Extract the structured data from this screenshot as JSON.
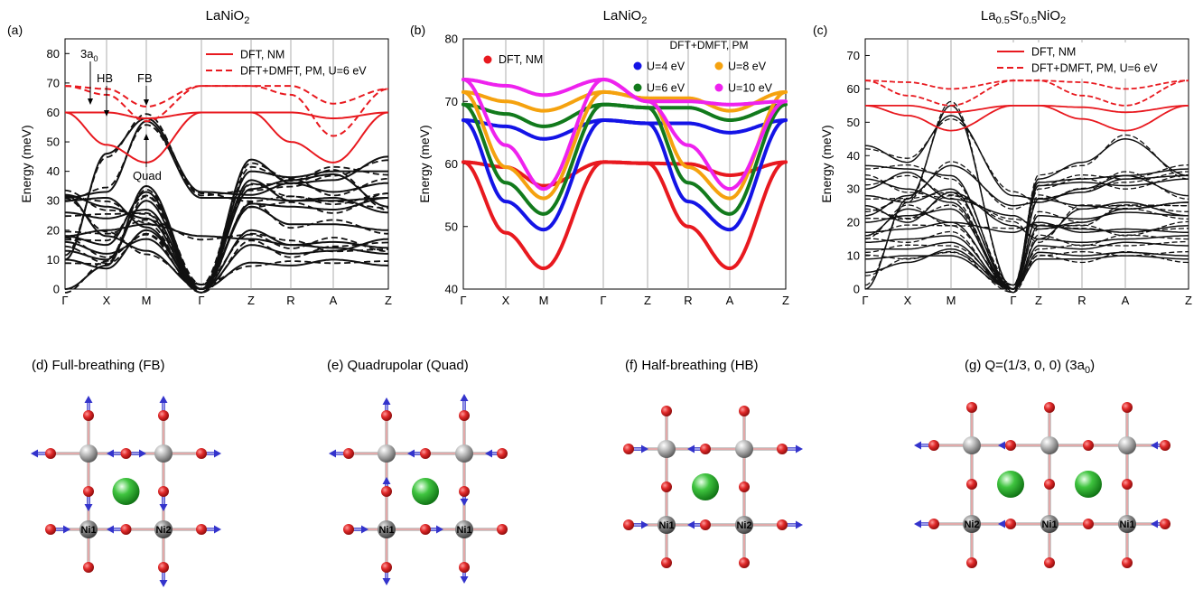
{
  "colors": {
    "nm": "#e8191f",
    "u4": "#1414e6",
    "u6": "#127a1c",
    "u8": "#f5a20f",
    "u10": "#ee22ee",
    "black": "#111111",
    "o_atom": "#d7252f",
    "ni_atom": "#9a9a9a",
    "la_atom": "#2db433",
    "arrow": "#3333cc"
  },
  "chart_data": [
    {
      "panel": "(a)",
      "type": "line",
      "title": "LaNiO2",
      "ylabel": "Energy (meV)",
      "ylim": [
        0,
        85
      ],
      "yticks": [
        0,
        10,
        20,
        30,
        40,
        50,
        60,
        70,
        80
      ],
      "kpoints": [
        "Γ",
        "X",
        "M",
        "Γ",
        "Z",
        "R",
        "A",
        "Z"
      ],
      "legend": [
        {
          "label": "DFT, NM",
          "style": "solid"
        },
        {
          "label": "DFT+DMFT, PM, U=6 eV",
          "style": "dashed"
        }
      ],
      "annotations": [
        "3a0",
        "HB",
        "FB",
        "Quad"
      ],
      "series": [
        {
          "name": "DFT, NM",
          "style": "solid",
          "color": "nm",
          "values": [
            [
              60,
              60,
              58,
              60,
              60,
              60,
              58,
              60
            ],
            [
              60,
              49,
              43,
              60,
              60,
              50,
              43,
              60
            ]
          ]
        },
        {
          "name": "DFT+DMFT, PM, U=6 eV",
          "style": "dashed",
          "color": "nm",
          "values": [
            [
              69,
              68,
              62,
              69,
              69,
              69,
              63,
              68
            ],
            [
              69,
              66,
              57,
              69,
              69,
              66,
              52,
              68
            ]
          ]
        }
      ]
    },
    {
      "panel": "(b)",
      "type": "line",
      "title": "LaNiO2",
      "ylabel": "Energy (meV)",
      "ylim": [
        40,
        80
      ],
      "yticks": [
        40,
        50,
        60,
        70,
        80
      ],
      "kpoints": [
        "Γ",
        "X",
        "M",
        "Γ",
        "Z",
        "R",
        "A",
        "Z"
      ],
      "legend_title": "DFT+DMFT, PM",
      "legend": [
        {
          "label": "DFT, NM",
          "color": "nm"
        },
        {
          "label": "U=4 eV",
          "color": "u4"
        },
        {
          "label": "U=8 eV",
          "color": "u8"
        },
        {
          "label": "U=6 eV",
          "color": "u6"
        },
        {
          "label": "U=10 eV",
          "color": "u10"
        }
      ],
      "series": [
        {
          "name": "DFT, NM",
          "color": "nm",
          "upper": [
            60.3,
            59.5,
            56.5,
            60.3,
            60.1,
            60,
            58.2,
            60.3
          ],
          "lower": [
            60.3,
            49,
            43.3,
            60.3,
            60.1,
            50,
            43.3,
            60.3
          ]
        },
        {
          "name": "U=4 eV",
          "color": "u4",
          "upper": [
            67,
            66,
            64,
            67,
            66.5,
            66.5,
            65,
            67
          ],
          "lower": [
            67,
            54,
            49.5,
            67,
            66.5,
            54,
            49.5,
            67
          ]
        },
        {
          "name": "U=6 eV",
          "color": "u6",
          "upper": [
            69.5,
            68,
            66,
            69.5,
            69,
            69,
            67,
            69.5
          ],
          "lower": [
            69.5,
            57,
            52,
            69.5,
            69,
            57,
            52,
            69.5
          ]
        },
        {
          "name": "U=8 eV",
          "color": "u8",
          "upper": [
            71.5,
            70,
            68.5,
            71.5,
            70.5,
            70.5,
            68.5,
            71.5
          ],
          "lower": [
            71.5,
            59.5,
            54.5,
            71.5,
            70.5,
            59.5,
            54.5,
            71.5
          ]
        },
        {
          "name": "U=10 eV",
          "color": "u10",
          "upper": [
            73.5,
            72.5,
            71,
            73.5,
            70,
            70,
            69.5,
            70
          ],
          "lower": [
            73.5,
            63,
            56,
            73.5,
            70,
            63,
            56,
            70
          ]
        }
      ]
    },
    {
      "panel": "(c)",
      "type": "line",
      "title": "La0.5Sr0.5NiO2",
      "ylabel": "Energy (meV)",
      "ylim": [
        0,
        75
      ],
      "yticks": [
        0,
        10,
        20,
        30,
        40,
        50,
        60,
        70
      ],
      "kpoints": [
        "Γ",
        "X",
        "M",
        "Γ",
        "Z",
        "R",
        "A",
        "Z"
      ],
      "legend": [
        {
          "label": "DFT, NM",
          "style": "solid"
        },
        {
          "label": "DFT+DMFT, PM, U=6 eV",
          "style": "dashed"
        }
      ],
      "series": [
        {
          "name": "DFT, NM",
          "style": "solid",
          "color": "nm",
          "values": [
            [
              55,
              55,
              53,
              55,
              55,
              54.5,
              53,
              55
            ],
            [
              55,
              52,
              47.5,
              55,
              55,
              51,
              47.5,
              55
            ]
          ]
        },
        {
          "name": "DFT+DMFT, PM, U=6 eV",
          "style": "dashed",
          "color": "nm",
          "values": [
            [
              62.5,
              62,
              60,
              62.5,
              62.5,
              62,
              60,
              62.5
            ],
            [
              62.5,
              58,
              55,
              62.5,
              62.5,
              58,
              55,
              62.5
            ]
          ]
        }
      ]
    }
  ],
  "panel_titles": {
    "a": {
      "label": "(a)",
      "title_main": "LaNiO",
      "title_sub": "2"
    },
    "b": {
      "label": "(b)",
      "title_main": "LaNiO",
      "title_sub": "2"
    },
    "c": {
      "label": "(c)",
      "t1": "La",
      "t1s": "0.5",
      "t2": "Sr",
      "t2s": "0.5",
      "t3": "NiO",
      "t3s": "2"
    }
  },
  "structures": [
    {
      "label": "(d) Full-breathing (FB)",
      "ni_labels": [
        "Ni1",
        "Ni2"
      ]
    },
    {
      "label": "(e) Quadrupolar (Quad)",
      "ni_labels": [
        "Ni1",
        "Ni1"
      ]
    },
    {
      "label": "(f) Half-breathing (HB)",
      "ni_labels": [
        "Ni1",
        "Ni2"
      ]
    },
    {
      "label": "(g) Q=(1/3, 0, 0) (3a",
      "label_sub": "0",
      "label_end": ")",
      "ni_labels": [
        "Ni2",
        "Ni1",
        "Ni1"
      ]
    }
  ],
  "annot_a": {
    "a3": "3a",
    "a3s": "0",
    "hb": "HB",
    "fb": "FB",
    "quad": "Quad"
  }
}
